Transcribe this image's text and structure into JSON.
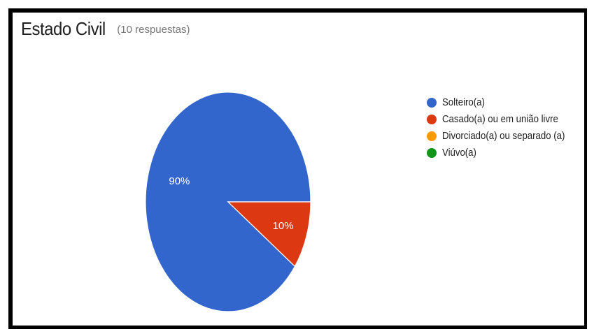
{
  "chart_data": {
    "type": "pie",
    "title": "Estado Civil",
    "subtitle": "(10 respuestas)",
    "categories": [
      "Solteiro(a)",
      "Casado(a) ou em união livre",
      "Divorciado(a) ou separado (a)",
      "Viúvo(a)"
    ],
    "values": [
      90,
      10,
      0,
      0
    ],
    "data_labels": [
      "90%",
      "10%",
      "",
      ""
    ],
    "colors": [
      "#3366cc",
      "#dc3912",
      "#ff9900",
      "#109618"
    ],
    "legend_position": "right"
  }
}
